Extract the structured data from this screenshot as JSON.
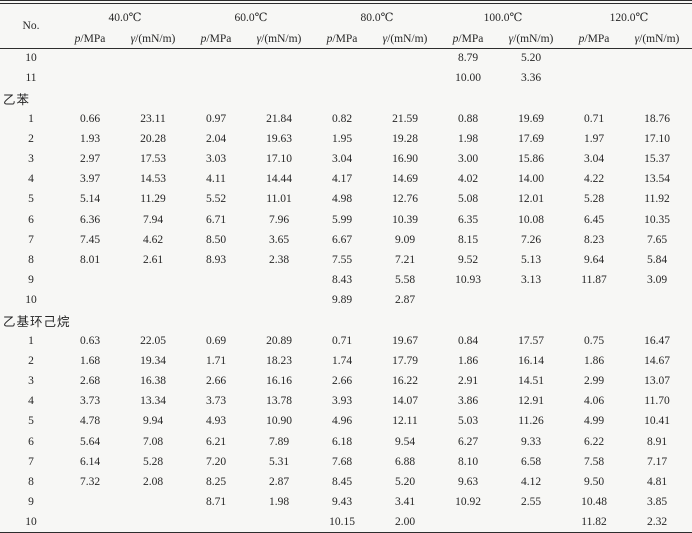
{
  "table": {
    "no_header": "No.",
    "temp_headers": [
      "40.0℃",
      "60.0℃",
      "80.0℃",
      "100.0℃",
      "120.0℃"
    ],
    "sub": {
      "p_sym": "p",
      "p_rest": "/MPa",
      "g_sym": "γ",
      "g_rest": "/(mN/m)"
    },
    "rows": [
      {
        "no": "10",
        "v": [
          "",
          "",
          "",
          "",
          "",
          "",
          "8.79",
          "5.20",
          "",
          ""
        ]
      },
      {
        "no": "11",
        "v": [
          "",
          "",
          "",
          "",
          "",
          "",
          "10.00",
          "3.36",
          "",
          ""
        ]
      },
      {
        "section": "乙苯"
      },
      {
        "no": "1",
        "v": [
          "0.66",
          "23.11",
          "0.97",
          "21.84",
          "0.82",
          "21.59",
          "0.88",
          "19.69",
          "0.71",
          "18.76"
        ]
      },
      {
        "no": "2",
        "v": [
          "1.93",
          "20.28",
          "2.04",
          "19.63",
          "1.95",
          "19.28",
          "1.98",
          "17.69",
          "1.97",
          "17.10"
        ]
      },
      {
        "no": "3",
        "v": [
          "2.97",
          "17.53",
          "3.03",
          "17.10",
          "3.04",
          "16.90",
          "3.00",
          "15.86",
          "3.04",
          "15.37"
        ]
      },
      {
        "no": "4",
        "v": [
          "3.97",
          "14.53",
          "4.11",
          "14.44",
          "4.17",
          "14.69",
          "4.02",
          "14.00",
          "4.22",
          "13.54"
        ]
      },
      {
        "no": "5",
        "v": [
          "5.14",
          "11.29",
          "5.52",
          "11.01",
          "4.98",
          "12.76",
          "5.08",
          "12.01",
          "5.28",
          "11.92"
        ]
      },
      {
        "no": "6",
        "v": [
          "6.36",
          "7.94",
          "6.71",
          "7.96",
          "5.99",
          "10.39",
          "6.35",
          "10.08",
          "6.45",
          "10.35"
        ]
      },
      {
        "no": "7",
        "v": [
          "7.45",
          "4.62",
          "8.50",
          "3.65",
          "6.67",
          "9.09",
          "8.15",
          "7.26",
          "8.23",
          "7.65"
        ]
      },
      {
        "no": "8",
        "v": [
          "8.01",
          "2.61",
          "8.93",
          "2.38",
          "7.55",
          "7.21",
          "9.52",
          "5.13",
          "9.64",
          "5.84"
        ]
      },
      {
        "no": "9",
        "v": [
          "",
          "",
          "",
          "",
          "8.43",
          "5.58",
          "10.93",
          "3.13",
          "11.87",
          "3.09"
        ]
      },
      {
        "no": "10",
        "v": [
          "",
          "",
          "",
          "",
          "9.89",
          "2.87",
          "",
          "",
          "",
          ""
        ]
      },
      {
        "section": "乙基环己烷"
      },
      {
        "no": "1",
        "v": [
          "0.63",
          "22.05",
          "0.69",
          "20.89",
          "0.71",
          "19.67",
          "0.84",
          "17.57",
          "0.75",
          "16.47"
        ]
      },
      {
        "no": "2",
        "v": [
          "1.68",
          "19.34",
          "1.71",
          "18.23",
          "1.74",
          "17.79",
          "1.86",
          "16.14",
          "1.86",
          "14.67"
        ]
      },
      {
        "no": "3",
        "v": [
          "2.68",
          "16.38",
          "2.66",
          "16.16",
          "2.66",
          "16.22",
          "2.91",
          "14.51",
          "2.99",
          "13.07"
        ]
      },
      {
        "no": "4",
        "v": [
          "3.73",
          "13.34",
          "3.73",
          "13.78",
          "3.93",
          "14.07",
          "3.86",
          "12.91",
          "4.06",
          "11.70"
        ]
      },
      {
        "no": "5",
        "v": [
          "4.78",
          "9.94",
          "4.93",
          "10.90",
          "4.96",
          "12.11",
          "5.03",
          "11.26",
          "4.99",
          "10.41"
        ]
      },
      {
        "no": "6",
        "v": [
          "5.64",
          "7.08",
          "6.21",
          "7.89",
          "6.18",
          "9.54",
          "6.27",
          "9.33",
          "6.22",
          "8.91"
        ]
      },
      {
        "no": "7",
        "v": [
          "6.14",
          "5.28",
          "7.20",
          "5.31",
          "7.68",
          "6.88",
          "8.10",
          "6.58",
          "7.58",
          "7.17"
        ]
      },
      {
        "no": "8",
        "v": [
          "7.32",
          "2.08",
          "8.25",
          "2.87",
          "8.45",
          "5.20",
          "9.63",
          "4.12",
          "9.50",
          "4.81"
        ]
      },
      {
        "no": "9",
        "v": [
          "",
          "",
          "8.71",
          "1.98",
          "9.43",
          "3.41",
          "10.92",
          "2.55",
          "10.48",
          "3.85"
        ]
      },
      {
        "no": "10",
        "v": [
          "",
          "",
          "",
          "",
          "10.15",
          "2.00",
          "",
          "",
          "11.82",
          "2.32"
        ]
      }
    ]
  }
}
